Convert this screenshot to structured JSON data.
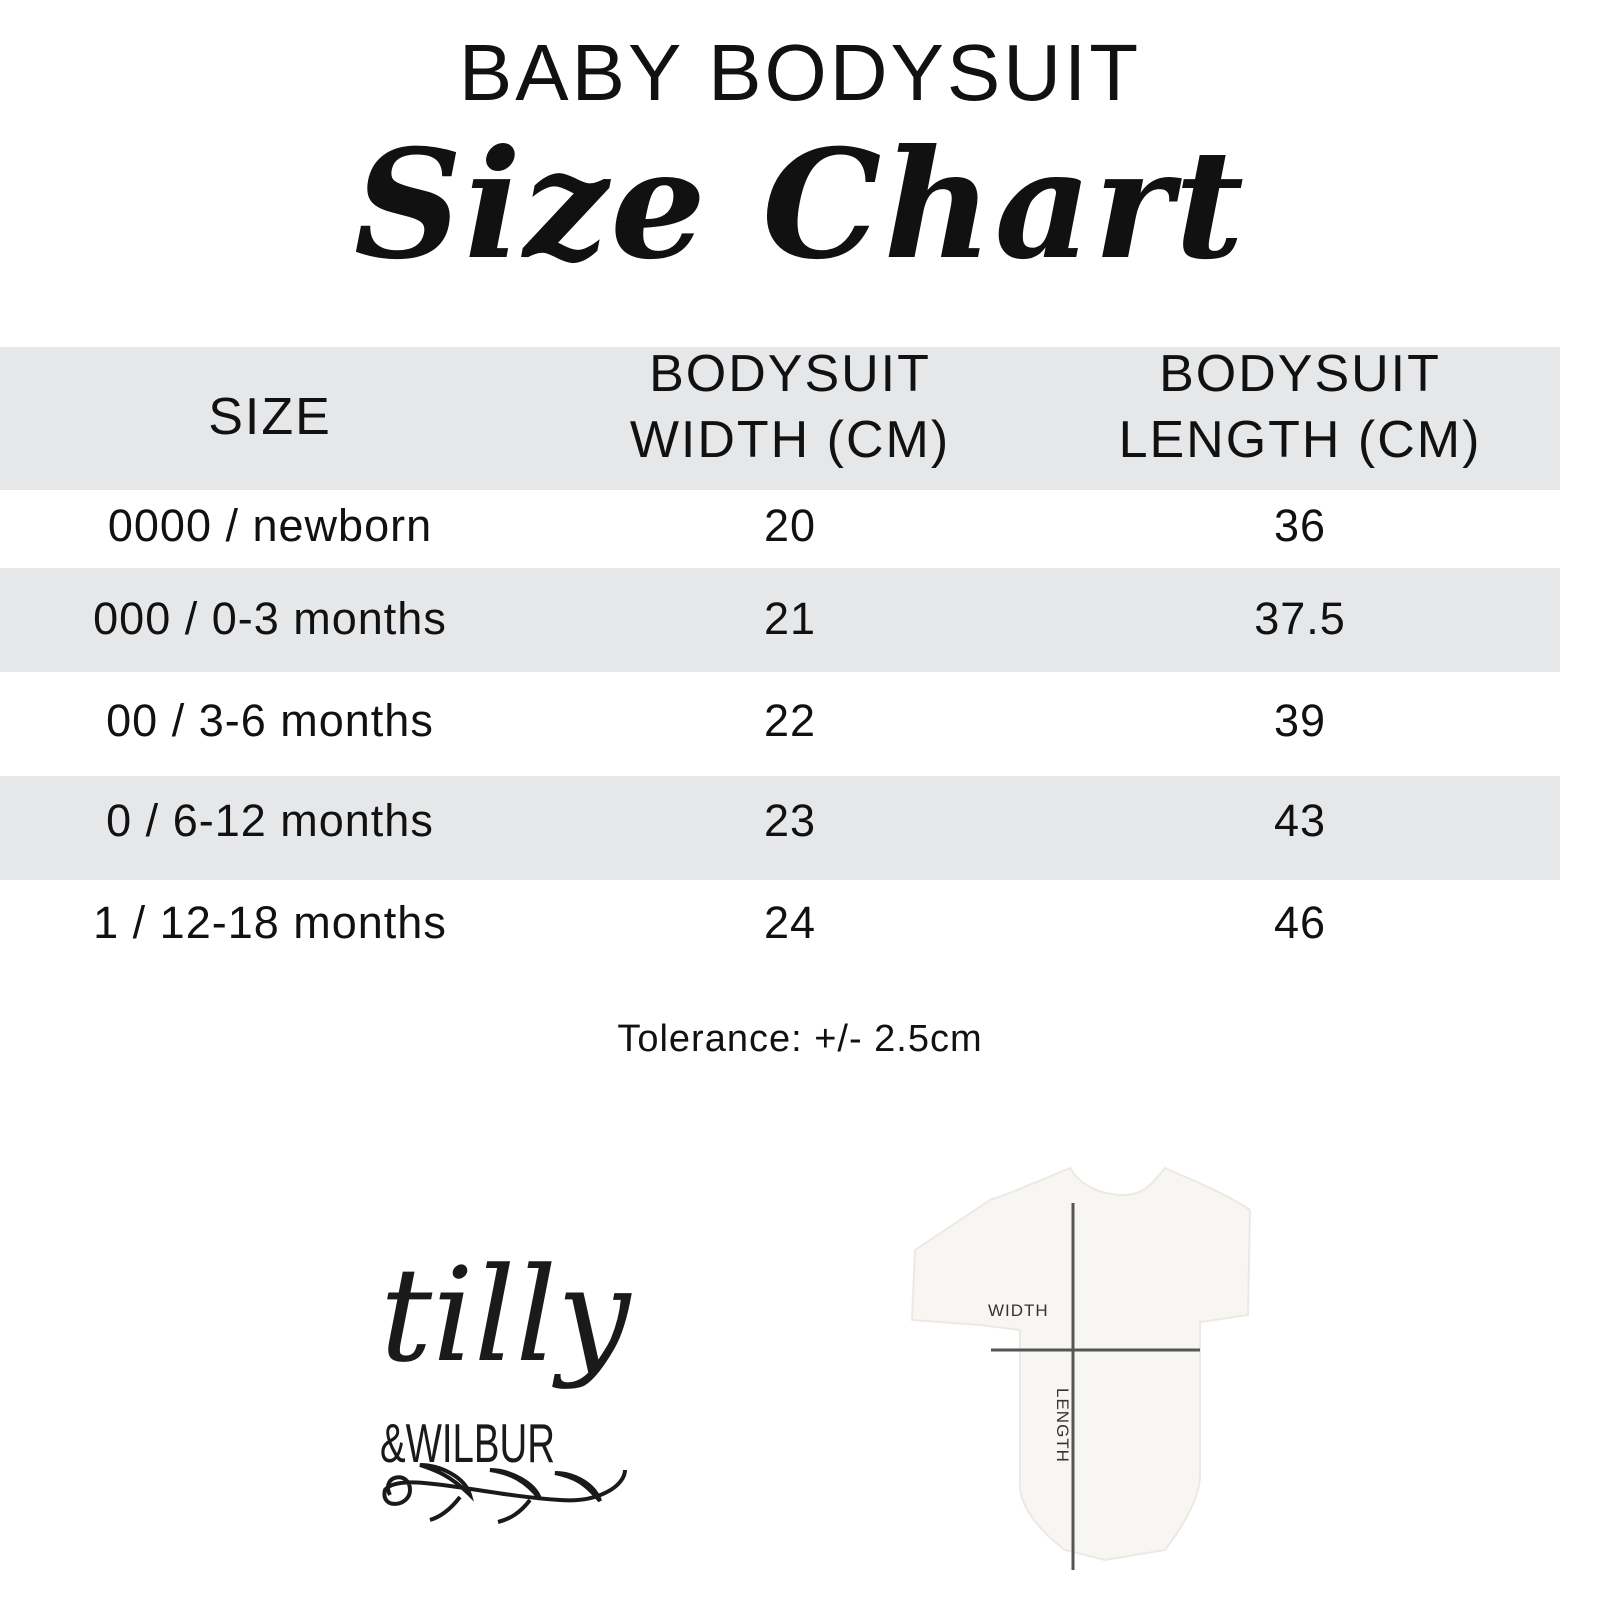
{
  "header": {
    "line1": "BABY BODYSUIT",
    "line2": "Size Chart"
  },
  "table": {
    "columns": [
      "SIZE",
      "BODYSUIT WIDTH (CM)",
      "BODYSUIT LENGTH (CM)"
    ],
    "column_lines": [
      [
        "SIZE"
      ],
      [
        "BODYSUIT",
        "WIDTH (CM)"
      ],
      [
        "BODYSUIT",
        "LENGTH (CM)"
      ]
    ],
    "rows": [
      [
        "0000 / newborn",
        "20",
        "36"
      ],
      [
        "000 / 0-3 months",
        "21",
        "37.5"
      ],
      [
        "00 / 3-6 months",
        "22",
        "39"
      ],
      [
        "0 / 6-12 months",
        "23",
        "43"
      ],
      [
        "1 / 12-18 months",
        "24",
        "46"
      ]
    ],
    "band_color": "#e6e7e9"
  },
  "tolerance": "Tolerance: +/- 2.5cm",
  "logo": {
    "line1": "tilly",
    "line2": "&WILBUR"
  },
  "diagram": {
    "width_label": "WIDTH",
    "length_label": "LENGTH"
  }
}
